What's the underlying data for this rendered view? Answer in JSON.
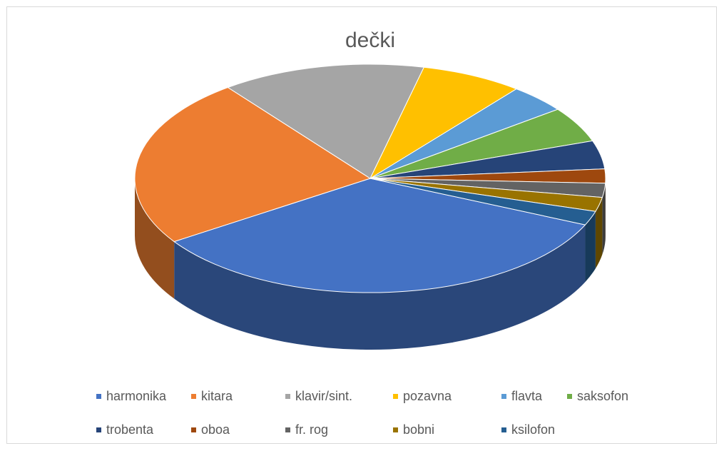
{
  "chart_data": {
    "type": "pie",
    "title": "dečki",
    "categories": [
      "harmonika",
      "kitara",
      "klavir/sint.",
      "pozavna",
      "flavta",
      "saksofon",
      "trobenta",
      "oboa",
      "fr. rog",
      "bobni",
      "ksilofon"
    ],
    "values": [
      34,
      24,
      14,
      7,
      4,
      5,
      4,
      2,
      2,
      2,
      2
    ],
    "colors": [
      "#4472c4",
      "#ed7d31",
      "#a5a5a5",
      "#ffc000",
      "#5b9bd5",
      "#70ad47",
      "#264478",
      "#9e480e",
      "#636363",
      "#997300",
      "#255e91"
    ],
    "legend": "bottom"
  }
}
